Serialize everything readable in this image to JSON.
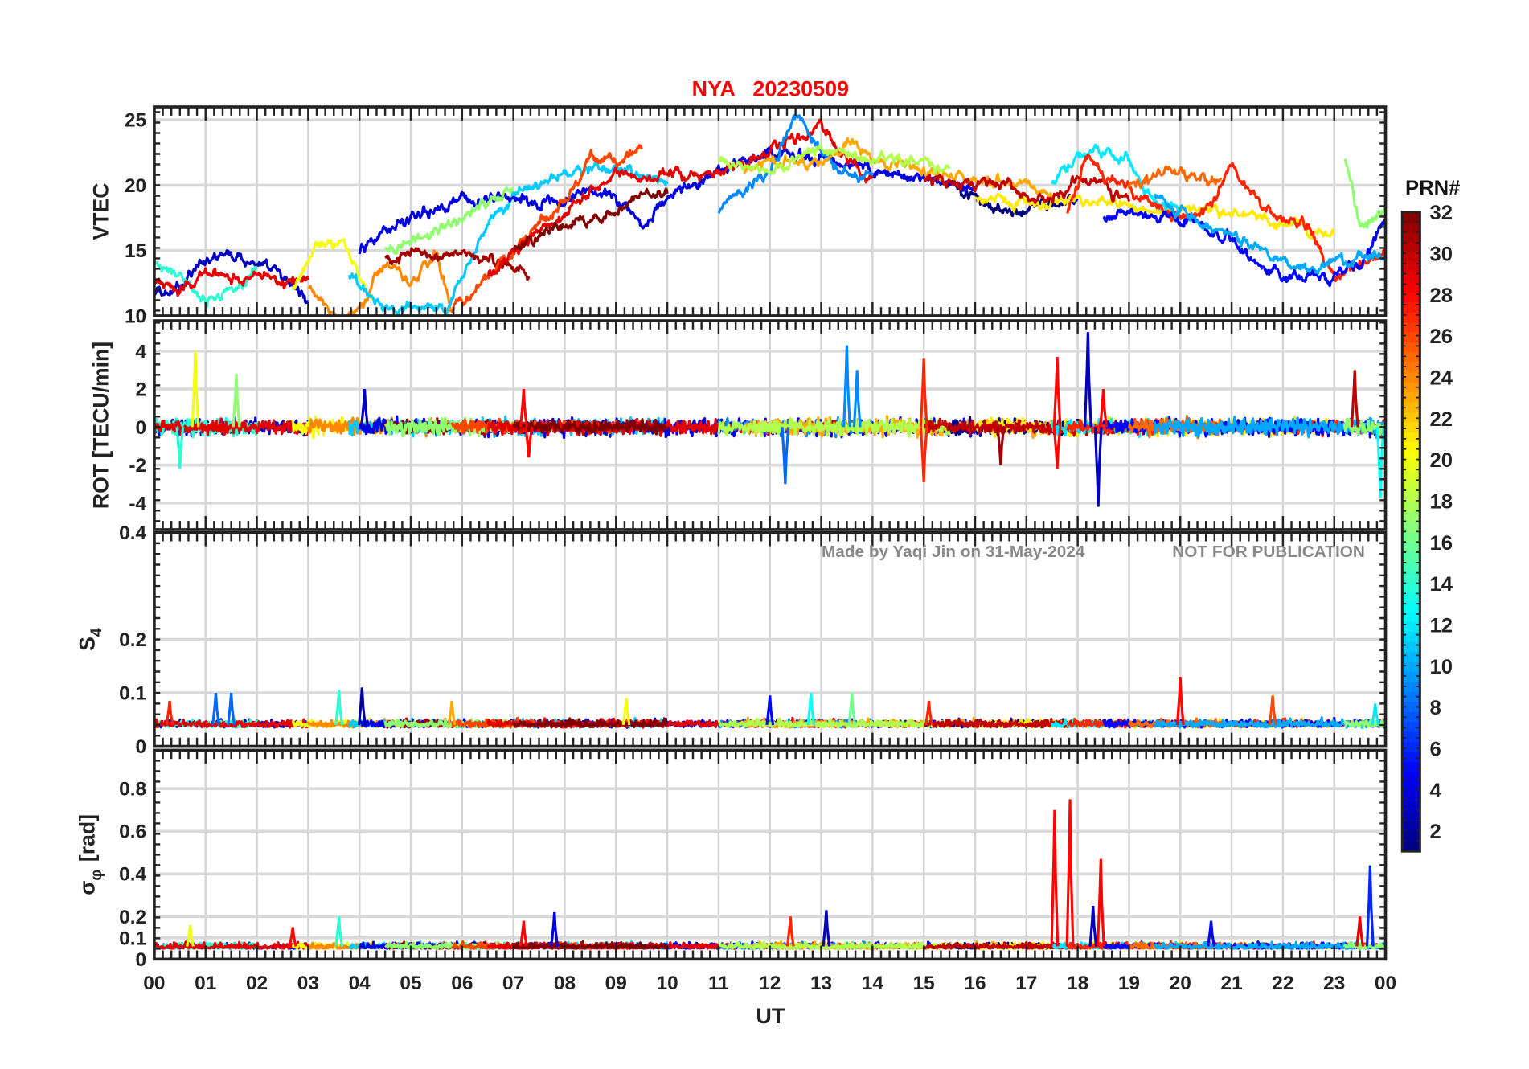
{
  "chart_data": {
    "type": "line",
    "title": "NYA   20230509",
    "title_color": "#ff0000",
    "xlabel": "UT",
    "xlim": [
      0,
      24
    ],
    "xtick_labels": [
      "00",
      "01",
      "02",
      "03",
      "04",
      "05",
      "06",
      "07",
      "08",
      "09",
      "10",
      "11",
      "12",
      "13",
      "14",
      "15",
      "16",
      "17",
      "18",
      "19",
      "20",
      "21",
      "22",
      "23",
      "00"
    ],
    "watermark": [
      "Made by Yaqi Jin on 31-May-2024",
      "NOT FOR PUBLICATION"
    ],
    "colorbar": {
      "label": "PRN#",
      "range": [
        1,
        32
      ],
      "colormap": "jet",
      "ticks": [
        "2",
        "4",
        "6",
        "8",
        "10",
        "12",
        "14",
        "16",
        "18",
        "20",
        "22",
        "24",
        "26",
        "28",
        "30",
        "32"
      ]
    },
    "panels": [
      {
        "id": "vtec",
        "ylabel": "VTEC",
        "ylim": [
          10,
          26
        ],
        "yticks": [
          10,
          15,
          20,
          25
        ],
        "ytick_labels": [
          "10",
          "15",
          "20",
          "25"
        ]
      },
      {
        "id": "rot",
        "ylabel": "ROT [TECU/min]",
        "ylim": [
          -5.4,
          5.6
        ],
        "yticks": [
          -4,
          -2,
          0,
          2,
          4
        ],
        "ytick_labels": [
          "-4",
          "-2",
          "0",
          "2",
          "4"
        ]
      },
      {
        "id": "s4",
        "ylabel": "S",
        "ylabel_sub": "4",
        "ylim": [
          0,
          0.4
        ],
        "yticks": [
          0,
          0.1,
          0.2,
          0.4
        ],
        "ytick_labels": [
          "0",
          "0.1",
          "0.2",
          "0.4"
        ]
      },
      {
        "id": "sigma",
        "ylabel": "σ",
        "ylabel_sub": "φ",
        "ylabel_unit": "[rad]",
        "ylim": [
          0,
          0.98
        ],
        "yticks": [
          0,
          0.1,
          0.2,
          0.4,
          0.6,
          0.8
        ],
        "ytick_labels": [
          "0",
          "0.1",
          "0.2",
          "0.4",
          "0.6",
          "0.8"
        ]
      }
    ],
    "passes": [
      {
        "prn": 3,
        "vtec": [
          [
            0,
            11.5
          ],
          [
            0.5,
            12
          ],
          [
            1,
            14.5
          ],
          [
            1.5,
            14.5
          ],
          [
            2,
            14
          ],
          [
            2.5,
            13
          ],
          [
            3,
            11
          ]
        ]
      },
      {
        "prn": 14,
        "vtec": [
          [
            0,
            14
          ],
          [
            0.5,
            13
          ],
          [
            1,
            11
          ],
          [
            1.5,
            12
          ],
          [
            2,
            13.5
          ]
        ]
      },
      {
        "prn": 29,
        "vtec": [
          [
            0,
            12.5
          ],
          [
            0.5,
            12
          ],
          [
            1,
            13.5
          ],
          [
            1.5,
            13
          ],
          [
            2,
            13
          ],
          [
            2.5,
            12.5
          ],
          [
            3,
            13
          ]
        ]
      },
      {
        "prn": 20,
        "vtec": [
          [
            2.7,
            12
          ],
          [
            3.2,
            15.5
          ],
          [
            3.7,
            15.5
          ],
          [
            4,
            13
          ],
          [
            4.3,
            11
          ]
        ]
      },
      {
        "prn": 24,
        "vtec": [
          [
            3,
            12
          ],
          [
            3.5,
            10.2
          ],
          [
            4,
            10
          ],
          [
            4.3,
            13
          ],
          [
            4.7,
            14
          ],
          [
            5,
            12
          ],
          [
            5.5,
            15
          ],
          [
            5.8,
            10.3
          ]
        ]
      },
      {
        "prn": 11,
        "vtec": [
          [
            3.8,
            13
          ],
          [
            4.5,
            10.5
          ],
          [
            5,
            10.5
          ],
          [
            5.7,
            10.5
          ],
          [
            6,
            13
          ],
          [
            6.5,
            17
          ],
          [
            7,
            19
          ],
          [
            7.5,
            20
          ],
          [
            8,
            21
          ],
          [
            9,
            21.5
          ],
          [
            10,
            20
          ]
        ]
      },
      {
        "prn": 4,
        "vtec": [
          [
            4,
            15
          ],
          [
            5,
            17.5
          ],
          [
            6,
            19
          ],
          [
            7,
            19
          ],
          [
            7.5,
            18.5
          ],
          [
            8,
            19
          ],
          [
            8.5,
            19.5
          ],
          [
            9,
            19
          ],
          [
            9.5,
            17
          ],
          [
            10,
            19
          ],
          [
            11,
            21
          ],
          [
            12,
            22.5
          ],
          [
            13,
            22
          ],
          [
            14,
            21
          ],
          [
            15,
            20.5
          ],
          [
            16,
            20
          ]
        ]
      },
      {
        "prn": 31,
        "vtec": [
          [
            4.5,
            14.5
          ],
          [
            5,
            14.5
          ],
          [
            6,
            14.8
          ],
          [
            6.5,
            14.2
          ],
          [
            7,
            14
          ],
          [
            7.3,
            13.2
          ]
        ]
      },
      {
        "prn": 17,
        "vtec": [
          [
            4.5,
            15
          ],
          [
            5.5,
            16.5
          ],
          [
            6.5,
            18.5
          ],
          [
            7,
            20
          ]
        ]
      },
      {
        "prn": 26,
        "vtec": [
          [
            5.8,
            10.2
          ],
          [
            6.5,
            13
          ],
          [
            7,
            15
          ],
          [
            7.5,
            17
          ],
          [
            8,
            18.5
          ],
          [
            8.5,
            22
          ],
          [
            9,
            22
          ],
          [
            9.5,
            22.5
          ]
        ]
      },
      {
        "prn": 29,
        "vtec": [
          [
            6.5,
            13
          ],
          [
            7,
            15
          ],
          [
            7.5,
            16.5
          ],
          [
            8,
            18
          ],
          [
            8.5,
            19.5
          ],
          [
            9,
            21
          ],
          [
            9.5,
            20.5
          ],
          [
            10,
            21
          ],
          [
            10.5,
            21
          ],
          [
            11,
            21
          ],
          [
            12,
            22.5
          ],
          [
            13,
            24.5
          ],
          [
            13.5,
            22
          ],
          [
            14,
            20.5
          ]
        ]
      },
      {
        "prn": 32,
        "vtec": [
          [
            7,
            15
          ],
          [
            7.5,
            16
          ],
          [
            8,
            17
          ],
          [
            8.5,
            17.5
          ],
          [
            9,
            18
          ],
          [
            9.5,
            19.5
          ],
          [
            10,
            19.5
          ]
        ]
      },
      {
        "prn": 9,
        "vtec": [
          [
            11,
            18
          ],
          [
            11.5,
            20
          ],
          [
            12,
            21
          ],
          [
            12.5,
            25.5
          ],
          [
            13,
            22.5
          ],
          [
            13.5,
            21
          ],
          [
            14,
            21
          ]
        ]
      },
      {
        "prn": 23,
        "vtec": [
          [
            11.5,
            21
          ],
          [
            12,
            22
          ],
          [
            13,
            21.5
          ],
          [
            13.5,
            23.5
          ],
          [
            14,
            22
          ],
          [
            15,
            21
          ],
          [
            16,
            20.5
          ],
          [
            17,
            20
          ],
          [
            17.5,
            19.5
          ]
        ]
      },
      {
        "prn": 18,
        "vtec": [
          [
            11,
            22
          ],
          [
            12,
            21
          ],
          [
            13,
            23
          ],
          [
            14,
            22
          ],
          [
            15,
            22
          ],
          [
            15.5,
            21
          ]
        ]
      },
      {
        "prn": 1,
        "vtec": [
          [
            15.5,
            20
          ],
          [
            16.5,
            18
          ],
          [
            17,
            18
          ],
          [
            18,
            19
          ]
        ]
      },
      {
        "prn": 21,
        "vtec": [
          [
            16,
            19
          ],
          [
            17,
            18.5
          ],
          [
            18,
            19
          ],
          [
            19,
            18.5
          ],
          [
            20,
            18
          ],
          [
            21,
            18
          ],
          [
            22,
            17
          ],
          [
            23,
            16
          ]
        ]
      },
      {
        "prn": 30,
        "vtec": [
          [
            15,
            20.5
          ],
          [
            16,
            20
          ],
          [
            16.5,
            20.2
          ],
          [
            17,
            19
          ],
          [
            17.5,
            18.5
          ],
          [
            18,
            21
          ],
          [
            18.5,
            20
          ],
          [
            19,
            19
          ]
        ]
      },
      {
        "prn": 12,
        "vtec": [
          [
            17.5,
            20
          ],
          [
            18,
            22.5
          ],
          [
            18.5,
            22.5
          ],
          [
            19,
            22
          ],
          [
            19.5,
            18.5
          ],
          [
            20,
            18
          ]
        ]
      },
      {
        "prn": 27,
        "vtec": [
          [
            17.8,
            18
          ],
          [
            18.2,
            22.5
          ],
          [
            18.5,
            20.5
          ],
          [
            19,
            20
          ],
          [
            19.5,
            18.5
          ],
          [
            20,
            17.5
          ],
          [
            20.5,
            18
          ],
          [
            21,
            21.5
          ],
          [
            21.5,
            19
          ],
          [
            22,
            17
          ],
          [
            22.5,
            17
          ],
          [
            23,
            13
          ],
          [
            23.5,
            14
          ],
          [
            24,
            15
          ]
        ]
      },
      {
        "prn": 5,
        "vtec": [
          [
            18.5,
            17.5
          ],
          [
            19,
            18
          ],
          [
            20,
            17.5
          ],
          [
            21,
            16
          ],
          [
            21.5,
            14
          ],
          [
            22,
            13
          ],
          [
            22.5,
            13
          ],
          [
            23,
            13
          ],
          [
            23.5,
            14
          ],
          [
            24,
            17
          ]
        ]
      },
      {
        "prn": 25,
        "vtec": [
          [
            19,
            20
          ],
          [
            19.8,
            21
          ],
          [
            20.3,
            20.5
          ],
          [
            20.8,
            20.5
          ]
        ]
      },
      {
        "prn": 10,
        "vtec": [
          [
            19.5,
            19
          ],
          [
            20.5,
            17
          ],
          [
            21,
            16
          ],
          [
            22,
            14.5
          ],
          [
            22.5,
            13.5
          ],
          [
            23,
            14
          ],
          [
            24,
            15
          ]
        ]
      },
      {
        "prn": 17,
        "vtec": [
          [
            23.2,
            22
          ],
          [
            23.5,
            17
          ],
          [
            24,
            18
          ]
        ]
      }
    ],
    "spikes": {
      "rot": [
        [
          0.8,
          4,
          20
        ],
        [
          1.6,
          2.8,
          17
        ],
        [
          0.5,
          -2.2,
          14
        ],
        [
          4.1,
          2,
          3
        ],
        [
          7.2,
          2,
          28
        ],
        [
          7.3,
          -1.6,
          28
        ],
        [
          12.3,
          -3,
          8
        ],
        [
          13.5,
          4.3,
          9
        ],
        [
          13.7,
          3,
          9
        ],
        [
          15,
          3.6,
          27
        ],
        [
          15,
          -2.9,
          27
        ],
        [
          16.5,
          -2,
          31
        ],
        [
          17.6,
          3.7,
          28
        ],
        [
          17.6,
          -2.2,
          28
        ],
        [
          18.2,
          5,
          3
        ],
        [
          18.4,
          -4.2,
          3
        ],
        [
          18.5,
          2,
          28
        ],
        [
          23.4,
          3,
          30
        ],
        [
          23.9,
          -3.7,
          13
        ]
      ],
      "s4": [
        [
          0.3,
          0.085,
          27
        ],
        [
          1.2,
          0.1,
          8
        ],
        [
          1.5,
          0.1,
          8
        ],
        [
          3.6,
          0.105,
          14
        ],
        [
          4.05,
          0.11,
          2
        ],
        [
          5.8,
          0.085,
          23
        ],
        [
          9.2,
          0.09,
          20
        ],
        [
          12.0,
          0.095,
          5
        ],
        [
          12.8,
          0.1,
          13
        ],
        [
          13.6,
          0.1,
          16
        ],
        [
          15.1,
          0.085,
          27
        ],
        [
          20,
          0.13,
          28
        ],
        [
          21.8,
          0.095,
          26
        ],
        [
          23.8,
          0.08,
          12
        ]
      ],
      "sigma": [
        [
          0.7,
          0.16,
          20
        ],
        [
          2.7,
          0.15,
          28
        ],
        [
          3.6,
          0.2,
          14
        ],
        [
          7.2,
          0.18,
          28
        ],
        [
          7.8,
          0.22,
          4
        ],
        [
          12.4,
          0.2,
          27
        ],
        [
          13.1,
          0.23,
          3
        ],
        [
          17.55,
          0.7,
          28
        ],
        [
          17.85,
          0.75,
          28
        ],
        [
          18.3,
          0.25,
          3
        ],
        [
          18.45,
          0.47,
          28
        ],
        [
          20.6,
          0.18,
          5
        ],
        [
          23.7,
          0.44,
          6
        ],
        [
          23.5,
          0.2,
          29
        ]
      ]
    }
  }
}
